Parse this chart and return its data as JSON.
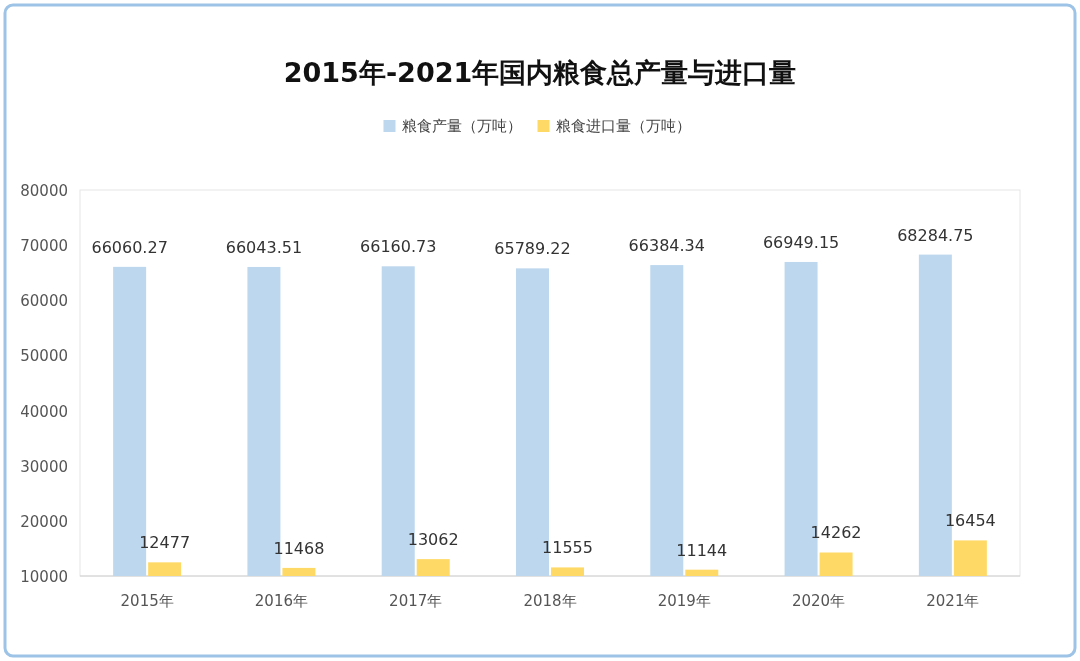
{
  "chart_data": {
    "type": "bar",
    "title": "2015年-2021年国内粮食总产量与进口量",
    "categories": [
      "2015年",
      "2016年",
      "2017年",
      "2018年",
      "2019年",
      "2020年",
      "2021年"
    ],
    "series": [
      {
        "name": "粮食产量（万吨）",
        "color": "#bdd7ee",
        "values": [
          66060.27,
          66043.51,
          66160.73,
          65789.22,
          66384.34,
          66949.15,
          68284.75
        ]
      },
      {
        "name": "粮食进口量（万吨）",
        "color": "#ffd966",
        "values": [
          12477,
          11468,
          13062,
          11555,
          11144,
          14262,
          16454
        ]
      }
    ],
    "ylim": [
      10000,
      80000
    ],
    "yticks": [
      10000,
      20000,
      30000,
      40000,
      50000,
      60000,
      70000,
      80000
    ],
    "data_labels": true,
    "legend": "top",
    "grid": false
  }
}
